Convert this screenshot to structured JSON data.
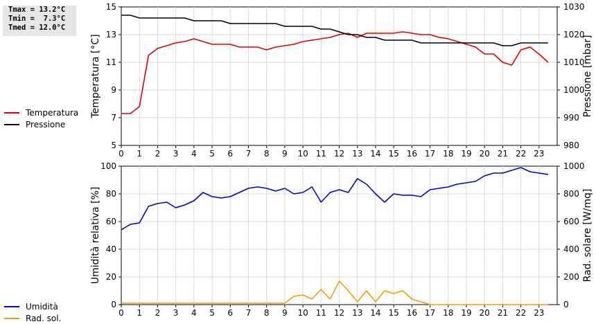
{
  "stats": [
    "Tmax = 13.2°C",
    "Tmin =  7.3°C",
    "Tmed = 12.0°C"
  ],
  "chart_data": [
    {
      "type": "line",
      "xticks": [
        "0",
        "1",
        "2",
        "3",
        "4",
        "5",
        "6",
        "7",
        "8",
        "9",
        "10",
        "11",
        "12",
        "13",
        "14",
        "15",
        "16",
        "17",
        "18",
        "19",
        "20",
        "21",
        "22",
        "23"
      ],
      "xlim": [
        0,
        24
      ],
      "ylabel": "Temperatura [°C]",
      "ylim": [
        5,
        15
      ],
      "yticks": [
        "5",
        "7",
        "9",
        "11",
        "13",
        "15"
      ],
      "y2label": "Pressione [mbar]",
      "y2lim": [
        980,
        1030
      ],
      "y2ticks": [
        "980",
        "990",
        "1000",
        "1010",
        "1020",
        "1030"
      ],
      "grid": true,
      "legend_position": "left",
      "series": [
        {
          "name": "Temperatura",
          "color": "#dd0000",
          "axis": "left",
          "x": [
            0,
            0.5,
            1,
            1.5,
            2,
            2.5,
            3,
            3.5,
            4,
            4.5,
            5,
            5.5,
            6,
            6.5,
            7,
            7.5,
            8,
            8.5,
            9,
            9.5,
            10,
            10.5,
            11,
            11.5,
            12,
            12.5,
            13,
            13.5,
            14,
            14.5,
            15,
            15.5,
            16,
            16.5,
            17,
            17.5,
            18,
            18.5,
            19,
            19.5,
            20,
            20.5,
            21,
            21.5,
            22,
            22.5,
            23,
            23.5
          ],
          "y": [
            7.3,
            7.3,
            7.8,
            11.5,
            12.0,
            12.2,
            12.4,
            12.5,
            12.7,
            12.5,
            12.3,
            12.3,
            12.3,
            12.1,
            12.1,
            12.1,
            11.9,
            12.1,
            12.2,
            12.3,
            12.5,
            12.6,
            12.7,
            12.8,
            13.0,
            13.1,
            12.8,
            13.1,
            13.1,
            13.1,
            13.1,
            13.2,
            13.1,
            13.0,
            13.0,
            12.8,
            12.7,
            12.5,
            12.3,
            12.1,
            11.6,
            11.6,
            11.0,
            10.8,
            11.9,
            12.1,
            11.6,
            11.0
          ]
        },
        {
          "name": "Pressione",
          "color": "#000000",
          "axis": "right",
          "x": [
            0,
            0.5,
            1,
            1.5,
            2,
            2.5,
            3,
            3.5,
            4,
            4.5,
            5,
            5.5,
            6,
            6.5,
            7,
            7.5,
            8,
            8.5,
            9,
            9.5,
            10,
            10.5,
            11,
            11.5,
            12,
            12.5,
            13,
            13.5,
            14,
            14.5,
            15,
            15.5,
            16,
            16.5,
            17,
            17.5,
            18,
            18.5,
            19,
            19.5,
            20,
            20.5,
            21,
            21.5,
            22,
            22.5,
            23,
            23.5
          ],
          "y": [
            1027,
            1027,
            1026,
            1026,
            1026,
            1026,
            1026,
            1026,
            1025,
            1025,
            1025,
            1025,
            1024,
            1024,
            1024,
            1024,
            1024,
            1024,
            1023,
            1023,
            1023,
            1023,
            1022,
            1022,
            1021,
            1020,
            1020,
            1019,
            1019,
            1018,
            1018,
            1018,
            1018,
            1017,
            1017,
            1017,
            1017,
            1017,
            1017,
            1017,
            1017,
            1017,
            1016,
            1016,
            1017,
            1017,
            1017,
            1017
          ]
        }
      ]
    },
    {
      "type": "line",
      "xticks": [
        "0",
        "1",
        "2",
        "3",
        "4",
        "5",
        "6",
        "7",
        "8",
        "9",
        "10",
        "11",
        "12",
        "13",
        "14",
        "15",
        "16",
        "17",
        "18",
        "19",
        "20",
        "21",
        "22",
        "23"
      ],
      "xlim": [
        0,
        24
      ],
      "ylabel": "Umidità relativa [%]",
      "ylim": [
        0,
        100
      ],
      "yticks": [
        "0",
        "20",
        "40",
        "60",
        "80",
        "100"
      ],
      "y2label": "Rad. solare [W/mq]",
      "y2lim": [
        0,
        1000
      ],
      "y2ticks": [
        "0",
        "200",
        "400",
        "600",
        "800",
        "1000"
      ],
      "grid": true,
      "legend_position": "left",
      "series": [
        {
          "name": "Umidità",
          "color": "#0000cc",
          "axis": "left",
          "x": [
            0,
            0.5,
            1,
            1.5,
            2,
            2.5,
            3,
            3.5,
            4,
            4.5,
            5,
            5.5,
            6,
            6.5,
            7,
            7.5,
            8,
            8.5,
            9,
            9.5,
            10,
            10.5,
            11,
            11.5,
            12,
            12.5,
            13,
            13.5,
            14,
            14.5,
            15,
            15.5,
            16,
            16.5,
            17,
            17.5,
            18,
            18.5,
            19,
            19.5,
            20,
            20.5,
            21,
            21.5,
            22,
            22.5,
            23,
            23.5
          ],
          "y": [
            54,
            58,
            59,
            71,
            73,
            74,
            70,
            72,
            75,
            81,
            78,
            77,
            78,
            81,
            84,
            85,
            84,
            82,
            84,
            80,
            81,
            85,
            74,
            81,
            83,
            81,
            91,
            87,
            80,
            74,
            80,
            79,
            79,
            78,
            83,
            84,
            85,
            87,
            88,
            89,
            93,
            95,
            95,
            97,
            99,
            96,
            95,
            94
          ]
        },
        {
          "name": "Rad. sol.",
          "color": "#f0a000",
          "axis": "right",
          "x": [
            0,
            0.5,
            1,
            1.5,
            2,
            2.5,
            3,
            3.5,
            4,
            4.5,
            5,
            5.5,
            6,
            6.5,
            7,
            7.5,
            8,
            8.5,
            9,
            9.5,
            10,
            10.5,
            11,
            11.5,
            12,
            12.5,
            13,
            13.5,
            14,
            14.5,
            15,
            15.5,
            16,
            16.5,
            17,
            17.5,
            18,
            18.5,
            19,
            19.5,
            20,
            20.5,
            21,
            21.5,
            22,
            22.5,
            23,
            23.5
          ],
          "y": [
            10,
            10,
            10,
            10,
            10,
            10,
            10,
            10,
            10,
            10,
            10,
            10,
            10,
            10,
            10,
            10,
            10,
            10,
            10,
            60,
            70,
            40,
            110,
            40,
            170,
            100,
            20,
            100,
            20,
            100,
            80,
            100,
            40,
            20,
            0,
            0,
            0,
            0,
            0,
            0,
            0,
            0,
            0,
            0,
            0,
            0,
            0,
            0
          ]
        }
      ]
    }
  ]
}
